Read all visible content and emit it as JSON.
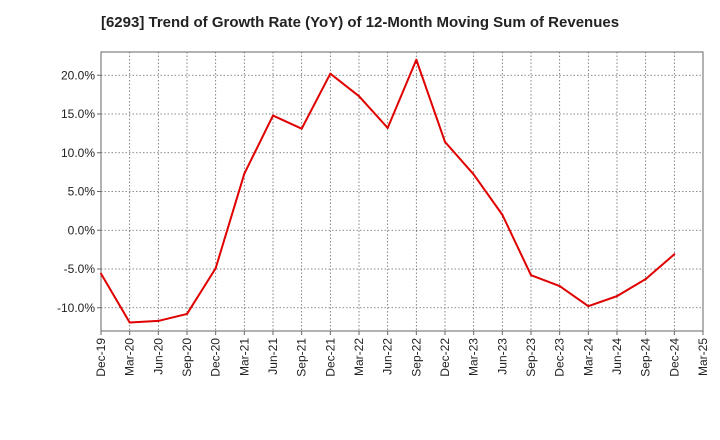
{
  "chart_data": {
    "type": "line",
    "title": "[6293]  Trend of Growth Rate (YoY) of 12-Month Moving Sum of Revenues",
    "xlabel": "",
    "ylabel": "",
    "x_tick_labels": [
      "Dec-19",
      "Mar-20",
      "Jun-20",
      "Sep-20",
      "Dec-20",
      "Mar-21",
      "Jun-21",
      "Sep-21",
      "Dec-21",
      "Mar-22",
      "Jun-22",
      "Sep-22",
      "Dec-22",
      "Mar-23",
      "Jun-23",
      "Sep-23",
      "Dec-23",
      "Mar-24",
      "Jun-24",
      "Sep-24",
      "Dec-24",
      "Mar-25"
    ],
    "y_tick_labels": [
      "20.0%",
      "15.0%",
      "10.0%",
      "5.0%",
      "0.0%",
      "-5.0%",
      "-10.0%"
    ],
    "y_ticks": [
      20,
      15,
      10,
      5,
      0,
      -5,
      -10
    ],
    "ylim": [
      -13,
      23
    ],
    "grid": true,
    "grid_style": "dotted",
    "series": [
      {
        "color": "#e00000",
        "x": [
          "Dec-19",
          "Mar-20",
          "Jun-20",
          "Sep-20",
          "Dec-20",
          "Mar-21",
          "Jun-21",
          "Sep-21",
          "Dec-21",
          "Mar-22",
          "Jun-22",
          "Sep-22",
          "Dec-22",
          "Mar-23",
          "Jun-23",
          "Sep-23",
          "Dec-23",
          "Mar-24",
          "Jun-24",
          "Sep-24",
          "Dec-24"
        ],
        "values": [
          -5.6,
          -11.9,
          -11.7,
          -10.8,
          -4.9,
          7.3,
          14.8,
          13.1,
          20.2,
          17.3,
          13.2,
          22.0,
          11.4,
          7.2,
          2.0,
          -5.8,
          -7.2,
          -9.8,
          -8.5,
          -6.3,
          -3.1
        ]
      }
    ]
  }
}
